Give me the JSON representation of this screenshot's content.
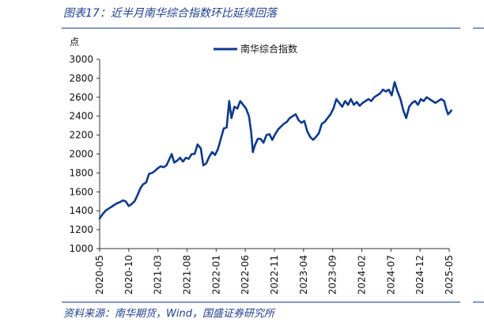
{
  "header": {
    "title": "图表17：近半月南华综合指数环比延续回落"
  },
  "footer": {
    "source": "资料来源：南华期货，Wind，国盛证券研究所"
  },
  "colors": {
    "series": "#0d3a8c",
    "accent": "#1f3f8f"
  },
  "chart_data": {
    "type": "line",
    "ylabel": "点",
    "ylim": [
      1000,
      3000
    ],
    "yticks": [
      1000,
      1200,
      1400,
      1600,
      1800,
      2000,
      2200,
      2400,
      2600,
      2800,
      3000
    ],
    "xlim": [
      "2020-05",
      "2025-05"
    ],
    "xticks": [
      "2020-05",
      "2020-10",
      "2021-03",
      "2021-08",
      "2022-01",
      "2022-06",
      "2022-11",
      "2023-04",
      "2023-09",
      "2024-02",
      "2024-07",
      "2024-12",
      "2025-05"
    ],
    "legend": "top-center",
    "grid": false,
    "series": [
      {
        "name": "南华综合指数",
        "x": [
          "2020-05-01",
          "2020-05-15",
          "2020-06-01",
          "2020-06-15",
          "2020-07-01",
          "2020-07-15",
          "2020-08-01",
          "2020-08-15",
          "2020-09-01",
          "2020-09-15",
          "2020-10-01",
          "2020-10-15",
          "2020-11-01",
          "2020-11-15",
          "2020-12-01",
          "2020-12-15",
          "2021-01-01",
          "2021-01-15",
          "2021-02-01",
          "2021-02-15",
          "2021-03-01",
          "2021-03-15",
          "2021-04-01",
          "2021-04-15",
          "2021-05-01",
          "2021-05-12",
          "2021-05-25",
          "2021-06-10",
          "2021-06-25",
          "2021-07-10",
          "2021-07-25",
          "2021-08-10",
          "2021-08-25",
          "2021-09-10",
          "2021-09-25",
          "2021-10-12",
          "2021-10-25",
          "2021-11-10",
          "2021-11-25",
          "2021-12-10",
          "2021-12-25",
          "2022-01-10",
          "2022-01-25",
          "2022-02-10",
          "2022-02-25",
          "2022-03-08",
          "2022-03-20",
          "2022-04-05",
          "2022-04-20",
          "2022-05-05",
          "2022-05-20",
          "2022-06-05",
          "2022-06-20",
          "2022-07-01",
          "2022-07-10",
          "2022-07-20",
          "2022-08-05",
          "2022-08-20",
          "2022-09-05",
          "2022-09-20",
          "2022-10-05",
          "2022-10-20",
          "2022-11-05",
          "2022-11-20",
          "2022-12-05",
          "2022-12-20",
          "2023-01-05",
          "2023-01-20",
          "2023-02-05",
          "2023-02-20",
          "2023-03-05",
          "2023-03-20",
          "2023-04-05",
          "2023-04-20",
          "2023-05-05",
          "2023-05-20",
          "2023-06-05",
          "2023-06-20",
          "2023-07-05",
          "2023-07-20",
          "2023-08-05",
          "2023-08-20",
          "2023-09-05",
          "2023-09-20",
          "2023-10-05",
          "2023-10-20",
          "2023-11-05",
          "2023-11-20",
          "2023-12-05",
          "2023-12-20",
          "2024-01-05",
          "2024-01-20",
          "2024-02-05",
          "2024-02-20",
          "2024-03-05",
          "2024-03-20",
          "2024-04-05",
          "2024-04-20",
          "2024-05-05",
          "2024-05-20",
          "2024-06-05",
          "2024-06-20",
          "2024-07-05",
          "2024-07-20",
          "2024-08-05",
          "2024-08-20",
          "2024-09-05",
          "2024-09-20",
          "2024-10-05",
          "2024-10-20",
          "2024-11-05",
          "2024-11-20",
          "2024-12-05",
          "2024-12-20",
          "2025-01-05",
          "2025-01-20",
          "2025-02-05",
          "2025-02-20",
          "2025-03-05",
          "2025-03-20",
          "2025-04-05",
          "2025-04-15",
          "2025-04-25",
          "2025-05-05",
          "2025-05-12"
        ],
        "values": [
          1320,
          1360,
          1400,
          1420,
          1440,
          1460,
          1480,
          1490,
          1510,
          1500,
          1450,
          1470,
          1500,
          1560,
          1640,
          1680,
          1700,
          1790,
          1800,
          1820,
          1850,
          1870,
          1860,
          1880,
          1950,
          2000,
          1910,
          1930,
          1960,
          1920,
          1960,
          1950,
          2000,
          2000,
          2100,
          2060,
          1880,
          1900,
          1970,
          2020,
          1990,
          2050,
          2160,
          2270,
          2280,
          2560,
          2380,
          2500,
          2480,
          2560,
          2520,
          2480,
          2400,
          2240,
          2020,
          2090,
          2160,
          2160,
          2120,
          2200,
          2210,
          2150,
          2210,
          2260,
          2290,
          2320,
          2340,
          2380,
          2400,
          2420,
          2360,
          2330,
          2350,
          2240,
          2180,
          2150,
          2180,
          2220,
          2320,
          2340,
          2380,
          2420,
          2480,
          2580,
          2540,
          2500,
          2560,
          2520,
          2580,
          2520,
          2550,
          2510,
          2540,
          2560,
          2580,
          2560,
          2600,
          2620,
          2640,
          2680,
          2660,
          2680,
          2620,
          2760,
          2660,
          2580,
          2460,
          2380,
          2500,
          2540,
          2560,
          2520,
          2580,
          2560,
          2600,
          2580,
          2560,
          2540,
          2560,
          2580,
          2560,
          2480,
          2420,
          2440,
          2460
        ]
      }
    ]
  }
}
